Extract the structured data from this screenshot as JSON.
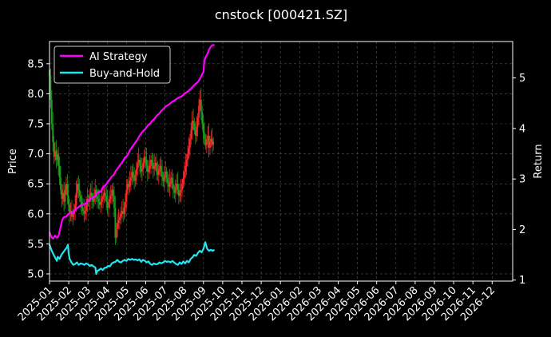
{
  "chart_data": {
    "type": "line",
    "title": "cnstock [000421.SZ]",
    "ylabel_left": "Price",
    "ylabel_right": "Return",
    "left_ticks": [
      "5.0",
      "5.5",
      "6.0",
      "6.5",
      "7.0",
      "7.5",
      "8.0",
      "8.5"
    ],
    "right_ticks": [
      "1",
      "2",
      "3",
      "4",
      "5"
    ],
    "ylim_left": [
      4.88,
      8.87
    ],
    "ylim_right": [
      0.98,
      5.72
    ],
    "x_ticks": [
      "2025-01",
      "2025-02",
      "2025-03",
      "2025-04",
      "2025-05",
      "2025-06",
      "2025-07",
      "2025-08",
      "2025-09",
      "2025-10",
      "2025-11",
      "2025-12",
      "2026-01",
      "2026-02",
      "2026-03",
      "2026-04",
      "2026-05",
      "2026-06",
      "2026-07",
      "2026-08",
      "2026-09",
      "2026-10",
      "2026-11",
      "2026-12"
    ],
    "grid": true,
    "legend": "top-left",
    "colors": {
      "background": "#000000",
      "up": "#ff2a2a",
      "down": "#1f9e1f",
      "ai": "#ff00ff",
      "bh": "#22e5f0",
      "grid": "#555555"
    },
    "series": [
      {
        "name": "AI Strategy",
        "axis": "right",
        "points": [
          [
            0,
            1.95
          ],
          [
            2,
            1.85
          ],
          [
            4,
            1.82
          ],
          [
            6,
            1.88
          ],
          [
            8,
            1.84
          ],
          [
            10,
            1.88
          ],
          [
            12,
            2.05
          ],
          [
            14,
            2.2
          ],
          [
            16,
            2.25
          ],
          [
            18,
            2.25
          ],
          [
            20,
            2.3
          ],
          [
            22,
            2.32
          ],
          [
            24,
            2.33
          ],
          [
            26,
            2.32
          ],
          [
            28,
            2.4
          ],
          [
            30,
            2.42
          ],
          [
            32,
            2.45
          ],
          [
            34,
            2.48
          ],
          [
            36,
            2.5
          ],
          [
            38,
            2.5
          ],
          [
            40,
            2.52
          ],
          [
            42,
            2.58
          ],
          [
            44,
            2.6
          ],
          [
            46,
            2.62
          ],
          [
            48,
            2.65
          ],
          [
            50,
            2.65
          ],
          [
            52,
            2.72
          ],
          [
            54,
            2.75
          ],
          [
            56,
            2.75
          ],
          [
            58,
            2.83
          ],
          [
            60,
            2.86
          ],
          [
            62,
            2.9
          ],
          [
            64,
            2.95
          ],
          [
            66,
            3.0
          ],
          [
            68,
            3.05
          ],
          [
            70,
            3.08
          ],
          [
            72,
            3.15
          ],
          [
            74,
            3.2
          ],
          [
            76,
            3.25
          ],
          [
            78,
            3.3
          ],
          [
            80,
            3.35
          ],
          [
            82,
            3.42
          ],
          [
            84,
            3.45
          ],
          [
            86,
            3.5
          ],
          [
            88,
            3.58
          ],
          [
            90,
            3.63
          ],
          [
            92,
            3.68
          ],
          [
            94,
            3.73
          ],
          [
            96,
            3.78
          ],
          [
            98,
            3.85
          ],
          [
            100,
            3.9
          ],
          [
            102,
            3.95
          ],
          [
            104,
            3.98
          ],
          [
            106,
            4.03
          ],
          [
            108,
            4.07
          ],
          [
            110,
            4.1
          ],
          [
            112,
            4.15
          ],
          [
            114,
            4.18
          ],
          [
            116,
            4.23
          ],
          [
            118,
            4.27
          ],
          [
            120,
            4.3
          ],
          [
            122,
            4.35
          ],
          [
            124,
            4.38
          ],
          [
            126,
            4.42
          ],
          [
            128,
            4.45
          ],
          [
            130,
            4.47
          ],
          [
            132,
            4.5
          ],
          [
            134,
            4.53
          ],
          [
            136,
            4.55
          ],
          [
            138,
            4.58
          ],
          [
            140,
            4.6
          ],
          [
            142,
            4.62
          ],
          [
            144,
            4.63
          ],
          [
            146,
            4.67
          ],
          [
            148,
            4.7
          ],
          [
            150,
            4.72
          ],
          [
            152,
            4.75
          ],
          [
            154,
            4.78
          ],
          [
            156,
            4.82
          ],
          [
            158,
            4.86
          ],
          [
            160,
            4.89
          ],
          [
            162,
            4.92
          ],
          [
            164,
            4.98
          ],
          [
            166,
            5.05
          ],
          [
            168,
            5.12
          ],
          [
            169,
            5.35
          ],
          [
            170,
            5.4
          ],
          [
            172,
            5.46
          ],
          [
            174,
            5.55
          ],
          [
            176,
            5.62
          ],
          [
            178,
            5.65
          ],
          [
            180,
            5.65
          ]
        ]
      },
      {
        "name": "Buy-and-Hold",
        "axis": "right",
        "points": [
          [
            0,
            1.7
          ],
          [
            2,
            1.6
          ],
          [
            4,
            1.52
          ],
          [
            6,
            1.45
          ],
          [
            8,
            1.38
          ],
          [
            9,
            1.46
          ],
          [
            11,
            1.42
          ],
          [
            13,
            1.5
          ],
          [
            15,
            1.55
          ],
          [
            17,
            1.6
          ],
          [
            19,
            1.65
          ],
          [
            20,
            1.7
          ],
          [
            21,
            1.52
          ],
          [
            22,
            1.42
          ],
          [
            24,
            1.35
          ],
          [
            26,
            1.3
          ],
          [
            28,
            1.32
          ],
          [
            30,
            1.35
          ],
          [
            32,
            1.3
          ],
          [
            34,
            1.33
          ],
          [
            36,
            1.32
          ],
          [
            38,
            1.3
          ],
          [
            40,
            1.33
          ],
          [
            42,
            1.31
          ],
          [
            44,
            1.28
          ],
          [
            46,
            1.3
          ],
          [
            48,
            1.27
          ],
          [
            50,
            1.25
          ],
          [
            51,
            1.12
          ],
          [
            52,
            1.18
          ],
          [
            54,
            1.2
          ],
          [
            56,
            1.23
          ],
          [
            58,
            1.2
          ],
          [
            60,
            1.24
          ],
          [
            62,
            1.25
          ],
          [
            64,
            1.28
          ],
          [
            66,
            1.27
          ],
          [
            68,
            1.33
          ],
          [
            70,
            1.35
          ],
          [
            72,
            1.36
          ],
          [
            74,
            1.4
          ],
          [
            76,
            1.36
          ],
          [
            78,
            1.35
          ],
          [
            80,
            1.38
          ],
          [
            82,
            1.4
          ],
          [
            84,
            1.38
          ],
          [
            86,
            1.42
          ],
          [
            88,
            1.4
          ],
          [
            90,
            1.42
          ],
          [
            92,
            1.4
          ],
          [
            94,
            1.41
          ],
          [
            96,
            1.39
          ],
          [
            98,
            1.41
          ],
          [
            100,
            1.36
          ],
          [
            102,
            1.4
          ],
          [
            104,
            1.38
          ],
          [
            106,
            1.35
          ],
          [
            108,
            1.37
          ],
          [
            110,
            1.32
          ],
          [
            112,
            1.3
          ],
          [
            114,
            1.33
          ],
          [
            116,
            1.31
          ],
          [
            118,
            1.32
          ],
          [
            120,
            1.35
          ],
          [
            122,
            1.33
          ],
          [
            124,
            1.35
          ],
          [
            126,
            1.38
          ],
          [
            128,
            1.36
          ],
          [
            130,
            1.37
          ],
          [
            132,
            1.35
          ],
          [
            134,
            1.38
          ],
          [
            136,
            1.35
          ],
          [
            138,
            1.32
          ],
          [
            140,
            1.3
          ],
          [
            142,
            1.35
          ],
          [
            144,
            1.32
          ],
          [
            146,
            1.37
          ],
          [
            148,
            1.33
          ],
          [
            150,
            1.38
          ],
          [
            152,
            1.35
          ],
          [
            154,
            1.42
          ],
          [
            156,
            1.45
          ],
          [
            158,
            1.5
          ],
          [
            160,
            1.48
          ],
          [
            162,
            1.54
          ],
          [
            164,
            1.58
          ],
          [
            166,
            1.55
          ],
          [
            168,
            1.62
          ],
          [
            169,
            1.68
          ],
          [
            170,
            1.75
          ],
          [
            172,
            1.62
          ],
          [
            174,
            1.58
          ],
          [
            176,
            1.6
          ],
          [
            178,
            1.58
          ],
          [
            180,
            1.6
          ]
        ]
      }
    ],
    "candles_series": {
      "name": "Price",
      "axis": "left",
      "x_start": 0,
      "x_step": 1,
      "closes": [
        8.3,
        7.9,
        7.5,
        7.2,
        6.95,
        7.05,
        6.9,
        7.0,
        6.8,
        6.6,
        6.4,
        6.25,
        6.35,
        6.2,
        6.4,
        6.5,
        6.3,
        6.15,
        6.0,
        6.05,
        5.95,
        6.0,
        6.05,
        6.15,
        6.35,
        6.5,
        6.4,
        6.3,
        6.2,
        6.1,
        6.05,
        6.0,
        6.05,
        6.15,
        6.25,
        6.2,
        6.3,
        6.35,
        6.25,
        6.2,
        6.3,
        6.4,
        6.3,
        6.25,
        6.2,
        6.15,
        6.2,
        6.25,
        6.3,
        6.35,
        6.3,
        6.2,
        6.1,
        6.2,
        6.25,
        6.3,
        6.4,
        6.3,
        6.1,
        5.6,
        5.75,
        5.85,
        5.9,
        5.95,
        6.0,
        6.05,
        6.0,
        6.1,
        6.2,
        6.4,
        6.5,
        6.45,
        6.55,
        6.6,
        6.7,
        6.6,
        6.55,
        6.65,
        6.75,
        6.85,
        6.9,
        6.8,
        6.7,
        6.75,
        6.85,
        6.95,
        6.9,
        6.8,
        6.7,
        6.75,
        6.8,
        6.9,
        6.85,
        6.75,
        6.8,
        6.85,
        6.7,
        6.65,
        6.75,
        6.8,
        6.7,
        6.6,
        6.55,
        6.65,
        6.7,
        6.6,
        6.5,
        6.45,
        6.55,
        6.6,
        6.5,
        6.4,
        6.35,
        6.45,
        6.5,
        6.4,
        6.3,
        6.35,
        6.4,
        6.5,
        6.6,
        6.7,
        6.8,
        6.9,
        7.0,
        7.1,
        7.25,
        7.4,
        7.55,
        7.5,
        7.4,
        7.3,
        7.45,
        7.6,
        7.8,
        7.9,
        7.7,
        7.5,
        7.35,
        7.25,
        7.15,
        7.2,
        7.3,
        7.1,
        7.2,
        7.25,
        7.15,
        7.2
      ]
    }
  }
}
